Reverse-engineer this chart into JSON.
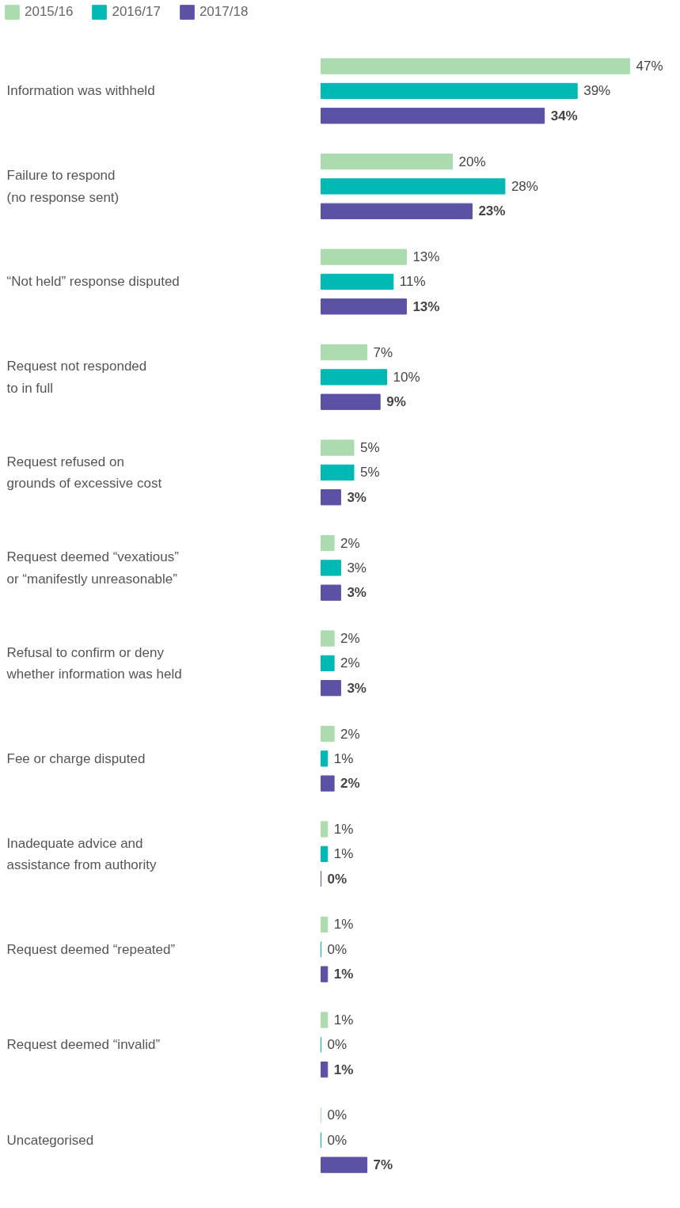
{
  "chart_data": {
    "type": "bar",
    "orientation": "horizontal",
    "legend": "top left",
    "grid": false,
    "categories": [
      "Information was withheld",
      "Failure to respond\n(no response sent)",
      "“Not held” response disputed",
      "Request not responded\nto in full",
      "Request refused on\ngrounds of excessive cost",
      "Request deemed “vexatious”\nor “manifestly unreasonable”",
      "Refusal to confirm or deny\nwhether information was held",
      "Fee or charge disputed",
      "Inadequate advice and\nassistance from authority",
      "Request deemed “repeated”",
      "Request deemed “invalid”",
      "Uncategorised"
    ],
    "series": [
      {
        "name": "2015/16",
        "color": "#acdbb0",
        "values": [
          47,
          20,
          13,
          7,
          5,
          2,
          2,
          2,
          1,
          1,
          1,
          0
        ],
        "value_labels": [
          "47%",
          "20%",
          "13%",
          "7%",
          "5%",
          "2%",
          "2%",
          "2%",
          "1%",
          "1%",
          "1%",
          "0%"
        ]
      },
      {
        "name": "2016/17",
        "color": "#00b8b4",
        "values": [
          39,
          28,
          11,
          10,
          5,
          3,
          2,
          1,
          1,
          0,
          0,
          0
        ],
        "value_labels": [
          "39%",
          "28%",
          "11%",
          "10%",
          "5%",
          "3%",
          "2%",
          "1%",
          "1%",
          "0%",
          "0%",
          "0%"
        ]
      },
      {
        "name": "2017/18",
        "color": "#5b52a5",
        "values": [
          34,
          23,
          13,
          9,
          3,
          3,
          3,
          2,
          0,
          1,
          1,
          7
        ],
        "value_labels": [
          "34%",
          "23%",
          "13%",
          "9%",
          "3%",
          "3%",
          "3%",
          "2%",
          "0%",
          "1%",
          "1%",
          "7%"
        ]
      }
    ]
  }
}
